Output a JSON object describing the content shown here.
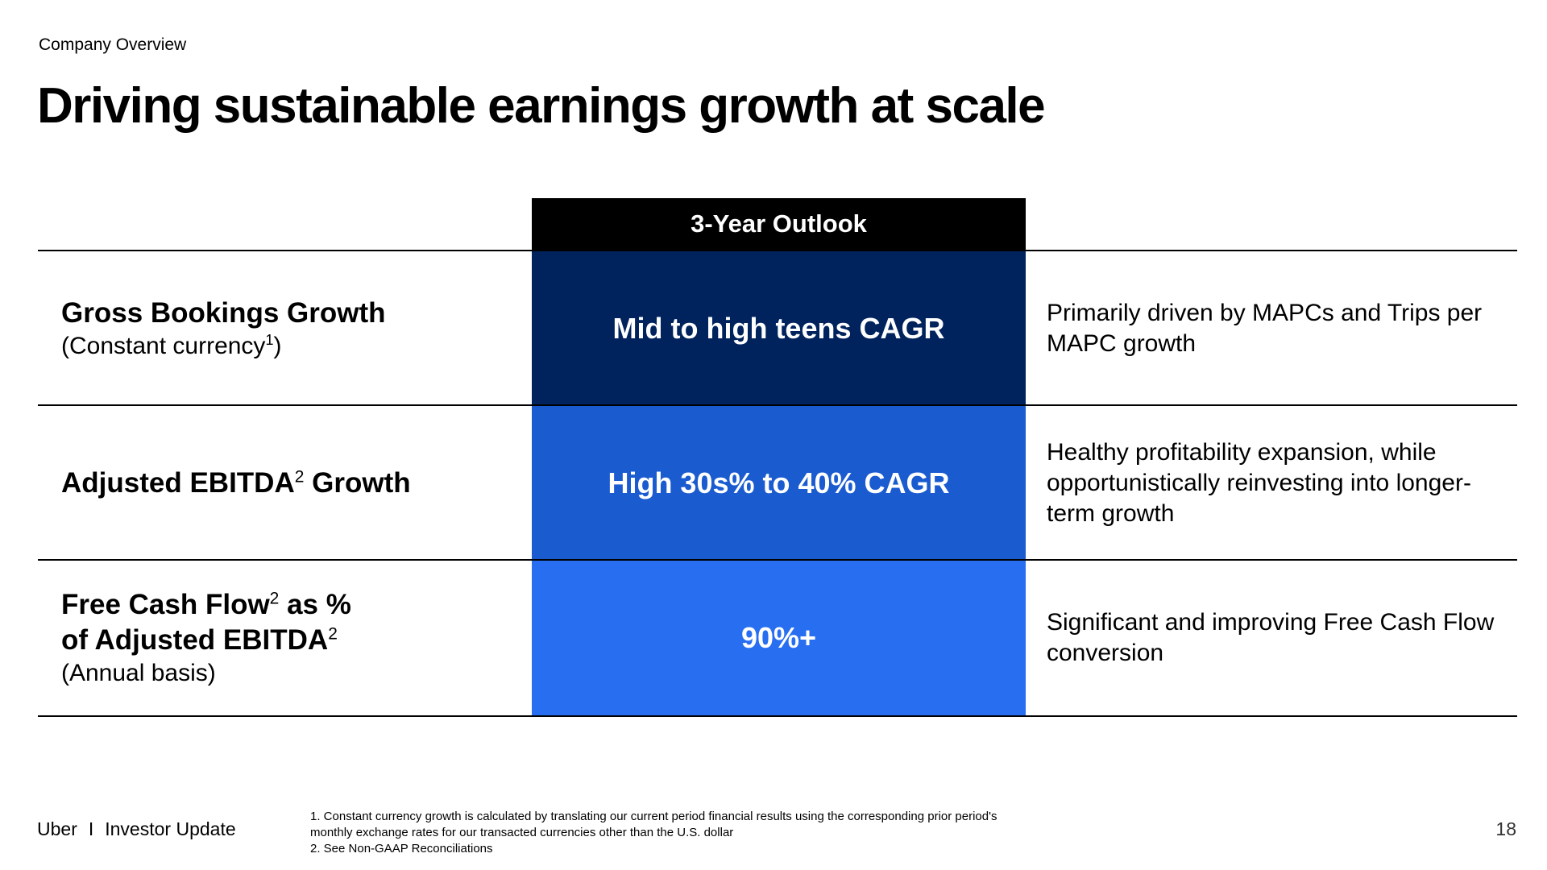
{
  "header": {
    "section": "Company Overview",
    "title": "Driving sustainable earnings growth at scale"
  },
  "table": {
    "outlook_header": "3-Year Outlook",
    "rows": [
      {
        "metric_line1": "Gross Bookings Growth",
        "metric_sub": "(Constant currency",
        "metric_sub_sup": "1",
        "metric_sub_end": ")",
        "outlook": "Mid to high teens CAGR",
        "outlook_color": "#00235D",
        "description": "Primarily driven by MAPCs and Trips per MAPC growth"
      },
      {
        "metric_line1": "Adjusted EBITDA",
        "metric_line1_sup": "2",
        "metric_line1_end": " Growth",
        "outlook": "High 30s% to 40% CAGR",
        "outlook_color": "#1A5BD0",
        "description": "Healthy profitability expansion, while opportunistically reinvesting into longer-term growth"
      },
      {
        "metric_line1": "Free Cash Flow",
        "metric_line1_sup": "2",
        "metric_line1_end": " as %",
        "metric_line2": "of Adjusted EBITDA",
        "metric_line2_sup": "2",
        "metric_sub": "(Annual basis)",
        "outlook": "90%+",
        "outlook_color": "#276EF1",
        "description": "Significant and improving Free Cash Flow conversion"
      }
    ]
  },
  "footer": {
    "brand": "Uber",
    "separator": "I",
    "label": "Investor Update",
    "footnote_1": "1. Constant currency growth is calculated by translating our current period financial results using the corresponding prior period's monthly exchange rates for our transacted currencies other than the U.S. dollar",
    "footnote_2": "2. See Non-GAAP Reconciliations",
    "page_number": "18"
  },
  "colors": {
    "header_bg": "#000000",
    "row1_bg": "#00235D",
    "row2_bg": "#1A5BD0",
    "row3_bg": "#276EF1"
  }
}
